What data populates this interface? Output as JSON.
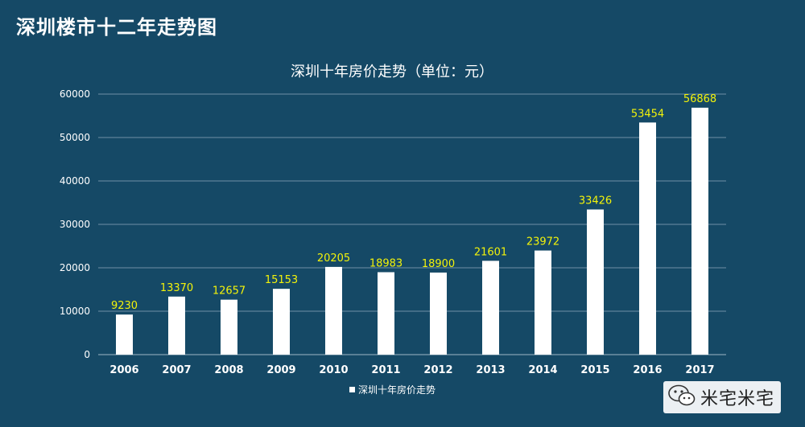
{
  "page": {
    "title": "深圳楼市十二年走势图"
  },
  "chart_data": {
    "type": "bar",
    "title": "深圳十年房价走势（单位：元）",
    "categories": [
      "2006",
      "2007",
      "2008",
      "2009",
      "2010",
      "2011",
      "2012",
      "2013",
      "2014",
      "2015",
      "2016",
      "2017"
    ],
    "series": [
      {
        "name": "深圳十年房价走势",
        "values": [
          9230,
          13370,
          12657,
          15153,
          20205,
          18983,
          18900,
          21601,
          23972,
          33426,
          53454,
          56868
        ]
      }
    ],
    "ylim": [
      0,
      60000
    ],
    "yticks": [
      0,
      10000,
      20000,
      30000,
      40000,
      50000,
      60000
    ],
    "xlabel": "",
    "ylabel": "",
    "grid": true,
    "legend": "bottom-center",
    "colors": {
      "background": "#154966",
      "bar": "#ffffff",
      "data_label": "#f2f20a",
      "text": "#ffffff",
      "gridline": "#6f8fa6"
    }
  },
  "watermark": {
    "icon": "wechat-icon",
    "text": "米宅米宅"
  }
}
